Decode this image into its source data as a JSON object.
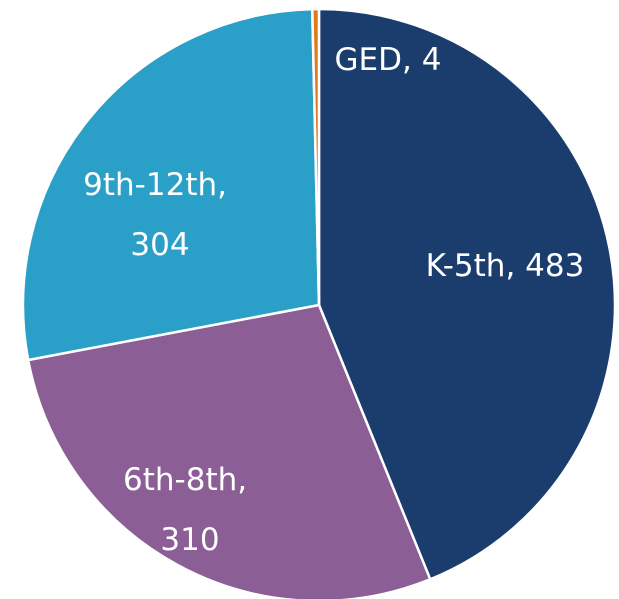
{
  "chart_data": {
    "type": "pie",
    "categories": [
      "K-5th",
      "6th-8th",
      "9th-12th",
      "GED"
    ],
    "values": [
      483,
      310,
      304,
      4
    ],
    "value_labels": [
      "K-5th, 483",
      "6th-8th, 310",
      "9th-12th, 304",
      "GED, 4"
    ],
    "colors": [
      "#1b3d6e",
      "#8b5e96",
      "#2a9fc7",
      "#e07a1f"
    ]
  }
}
